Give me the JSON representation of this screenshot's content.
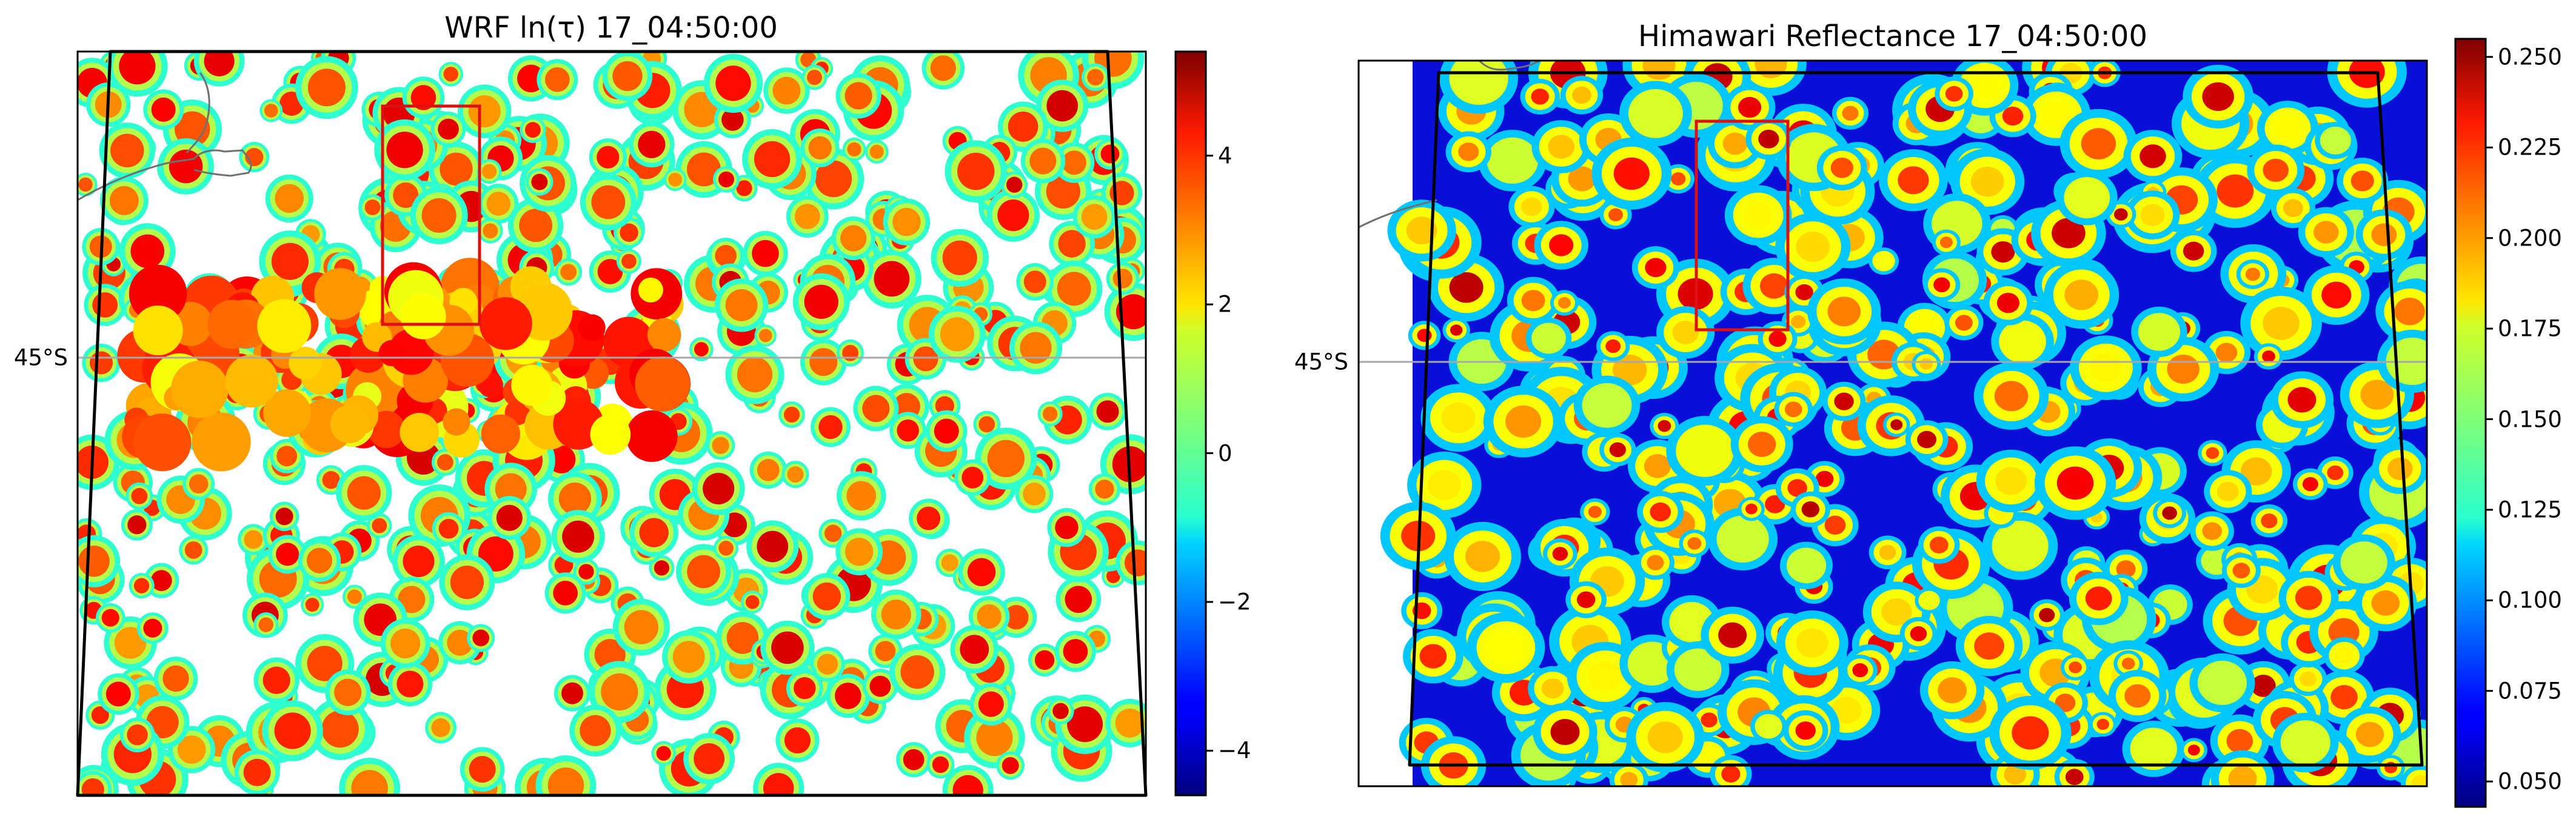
{
  "chart_data": [
    {
      "type": "heatmap",
      "title": "WRF ln(τ) 17_04:50:00",
      "latitude_label": "45°S",
      "colormap": "jet",
      "colorbar": {
        "min": -4.6,
        "max": 5.4,
        "ticks": [
          "−4",
          "−2",
          "0",
          "2",
          "4"
        ],
        "tick_values": [
          -4,
          -2,
          0,
          2,
          4
        ]
      },
      "background": "white (no cloud)",
      "overlays": [
        "black domain outline",
        "red rectangle region",
        "grey coastline",
        "grey 45°S latitude line"
      ]
    },
    {
      "type": "heatmap",
      "title": "Himawari Reflectance 17_04:50:00",
      "latitude_label": "45°S",
      "colormap": "jet",
      "colorbar": {
        "min": 0.043,
        "max": 0.255,
        "ticks": [
          "0.050",
          "0.075",
          "0.100",
          "0.125",
          "0.150",
          "0.175",
          "0.200",
          "0.225",
          "0.250"
        ],
        "tick_values": [
          0.05,
          0.075,
          0.1,
          0.125,
          0.15,
          0.175,
          0.2,
          0.225,
          0.25
        ]
      },
      "overlays": [
        "black domain outline",
        "red rectangle region",
        "grey coastline",
        "grey 45°S latitude line"
      ]
    }
  ]
}
